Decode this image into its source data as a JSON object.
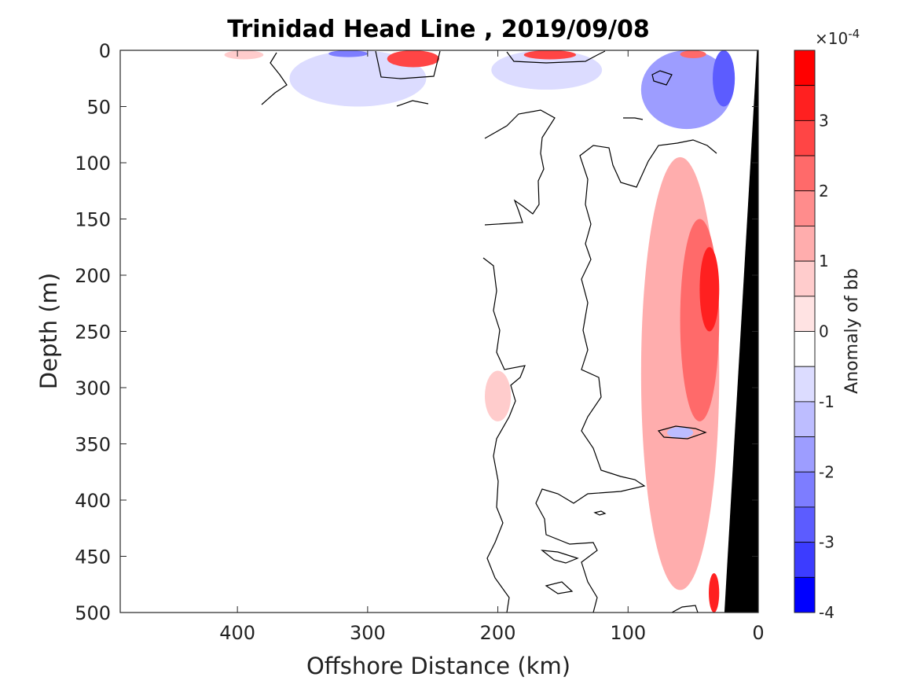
{
  "chart_data": {
    "type": "heatmap",
    "title": "Trinidad Head Line , 2019/09/08",
    "xlabel": "Offshore Distance (km)",
    "ylabel": "Depth (m)",
    "xlim": [
      490,
      0
    ],
    "x_reversed": true,
    "ylim": [
      500,
      0
    ],
    "y_reversed": true,
    "xticks": [
      400,
      300,
      200,
      100,
      0
    ],
    "xtick_labels": [
      "400",
      "300",
      "200",
      "100",
      "0"
    ],
    "yticks": [
      0,
      50,
      100,
      150,
      200,
      250,
      300,
      350,
      400,
      450,
      500
    ],
    "ytick_labels": [
      "0",
      "50",
      "100",
      "150",
      "200",
      "250",
      "300",
      "350",
      "400",
      "450",
      "500"
    ],
    "grid": false,
    "colorbar": {
      "label": "Anomaly of bb",
      "exponent_label": "×10",
      "exponent_power": "-4",
      "range": [
        -4,
        4
      ],
      "ticks": [
        3,
        2,
        1,
        0,
        -1,
        -2,
        -3,
        -4
      ],
      "tick_labels": [
        "3",
        "2",
        "1",
        "0",
        "-1",
        "-2",
        "-3",
        "-4"
      ],
      "levels": [
        4,
        3.5,
        3,
        2.5,
        2,
        1.5,
        1,
        0.5,
        0,
        -0.5,
        -1,
        -1.5,
        -2,
        -2.5,
        -3,
        -3.5,
        -4
      ],
      "colors": [
        "#ff0000",
        "#ff2020",
        "#ff4545",
        "#ff6a6a",
        "#ff8c8c",
        "#ffadad",
        "#ffcccc",
        "#ffe3e3",
        "#ffffff",
        "#dcdcff",
        "#bdbdff",
        "#9d9dff",
        "#7d7dff",
        "#5c5cff",
        "#3c3cff",
        "#0000ff"
      ]
    },
    "anomaly_regions": [
      {
        "x": [
          410,
          380
        ],
        "depth": [
          0,
          8
        ],
        "value": 0.7
      },
      {
        "x": [
          360,
          255
        ],
        "depth": [
          0,
          50
        ],
        "value": -0.8
      },
      {
        "x": [
          330,
          300
        ],
        "depth": [
          0,
          6
        ],
        "value": -2.2
      },
      {
        "x": [
          285,
          245
        ],
        "depth": [
          0,
          15
        ],
        "value": 2.6
      },
      {
        "x": [
          205,
          120
        ],
        "depth": [
          0,
          35
        ],
        "value": -0.7
      },
      {
        "x": [
          180,
          140
        ],
        "depth": [
          0,
          8
        ],
        "value": 2.6
      },
      {
        "x": [
          90,
          20
        ],
        "depth": [
          0,
          70
        ],
        "value": -1.6
      },
      {
        "x": [
          60,
          40
        ],
        "depth": [
          0,
          7
        ],
        "value": 2.4
      },
      {
        "x": [
          35,
          18
        ],
        "depth": [
          0,
          50
        ],
        "value": -3.0
      },
      {
        "x": [
          90,
          30
        ],
        "depth": [
          95,
          480
        ],
        "value": 1.0
      },
      {
        "x": [
          60,
          30
        ],
        "depth": [
          150,
          330
        ],
        "value": 2.0
      },
      {
        "x": [
          45,
          30
        ],
        "depth": [
          175,
          250
        ],
        "value": 3.2
      },
      {
        "x": [
          210,
          190
        ],
        "depth": [
          285,
          330
        ],
        "value": 0.9
      },
      {
        "x": [
          70,
          50
        ],
        "depth": [
          335,
          345
        ],
        "value": -1.1
      },
      {
        "x": [
          38,
          30
        ],
        "depth": [
          465,
          500
        ],
        "value": 3.2
      }
    ],
    "bathymetry": {
      "offshore_km_at_500m": 26,
      "offshore_km_at_0m": 1
    }
  }
}
